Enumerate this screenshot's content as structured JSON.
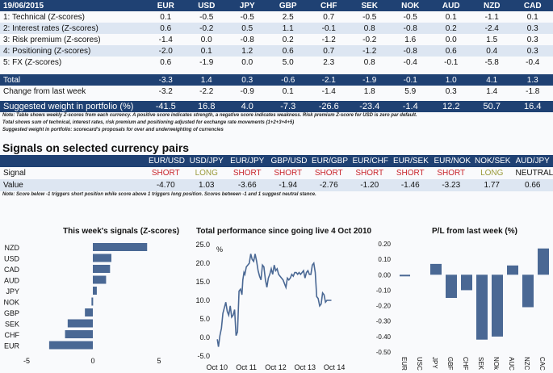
{
  "scorecard": {
    "date": "19/06/2015",
    "currencies": [
      "EUR",
      "USD",
      "JPY",
      "GBP",
      "CHF",
      "SEK",
      "NOK",
      "AUD",
      "NZD",
      "CAD"
    ],
    "rows": [
      {
        "label": "1: Technical (Z-scores)",
        "values": [
          "0.1",
          "-0.5",
          "-0.5",
          "2.5",
          "0.7",
          "-0.5",
          "-0.5",
          "0.1",
          "-1.1",
          "0.1"
        ]
      },
      {
        "label": "2: Interest rates (Z-scores)",
        "values": [
          "0.6",
          "-0.2",
          "0.5",
          "1.1",
          "-0.1",
          "0.8",
          "-0.8",
          "0.2",
          "-2.4",
          "0.3"
        ]
      },
      {
        "label": "3: Risk premium (Z-scores)",
        "values": [
          "-1.4",
          "0.0",
          "-0.8",
          "0.2",
          "-1.2",
          "-0.2",
          "1.6",
          "0.0",
          "1.5",
          "0.3"
        ]
      },
      {
        "label": "4: Positioning (Z-scores)",
        "values": [
          "-2.0",
          "0.1",
          "1.2",
          "0.6",
          "0.7",
          "-1.2",
          "-0.8",
          "0.6",
          "0.4",
          "0.3"
        ]
      },
      {
        "label": "5: FX (Z-scores)",
        "values": [
          "0.6",
          "-1.9",
          "0.0",
          "5.0",
          "2.3",
          "0.8",
          "-0.4",
          "-0.1",
          "-5.8",
          "-0.4"
        ]
      }
    ],
    "total": {
      "label": "Total",
      "values": [
        "-3.3",
        "1.4",
        "0.3",
        "-0.6",
        "-2.1",
        "-1.9",
        "-0.1",
        "1.0",
        "4.1",
        "1.3"
      ]
    },
    "change": {
      "label": "Change from last week",
      "values": [
        "-3.2",
        "-2.2",
        "-0.9",
        "0.1",
        "-1.4",
        "1.8",
        "5.9",
        "0.3",
        "1.4",
        "-1.8"
      ]
    },
    "weight": {
      "label": "Suggested weight in portfolio (%)",
      "values": [
        "-41.5",
        "16.8",
        "4.0",
        "-7.3",
        "-26.6",
        "-23.4",
        "-1.4",
        "12.2",
        "50.7",
        "16.4"
      ]
    },
    "notes": [
      "Note: Table shows weekly Z-scores from each currency. A positive score indicates strength, a negative score indicates weakness. Risk premium Z-score for USD is zero par default.",
      "Total shows sum of technical, interest rates, risk premium and positioning adjusted for exchange rate movements (1+2+3+4+5)",
      "Suggested weight in portfolio: scorecard's proposals for over and underweighting of currencies"
    ]
  },
  "signals": {
    "title": "Signals on selected currency pairs",
    "pairs": [
      "EUR/USD",
      "USD/JPY",
      "EUR/JPY",
      "GBP/USD",
      "EUR/GBP",
      "EUR/CHF",
      "EUR/SEK",
      "EUR/NOK",
      "NOK/SEK",
      "AUD/JPY"
    ],
    "signal_label": "Signal",
    "signals": [
      "SHORT",
      "LONG",
      "SHORT",
      "SHORT",
      "SHORT",
      "SHORT",
      "SHORT",
      "SHORT",
      "LONG",
      "NEUTRAL"
    ],
    "value_label": "Value",
    "values": [
      "-4.70",
      "1.03",
      "-3.66",
      "-1.94",
      "-2.76",
      "-1.20",
      "-1.46",
      "-3.23",
      "1.77",
      "0.66"
    ],
    "note": "Note: Score below -1 triggers short position while score above 1 triggers long position. Scores between -1 and 1 suggest neutral stance."
  },
  "colors": {
    "navy": "#1f4173",
    "bar": "#4a6894",
    "short": "#c8242b",
    "long": "#9a9a3a"
  },
  "chart_data": [
    {
      "type": "bar",
      "orientation": "horizontal",
      "title": "This week's signals (Z-scores)",
      "categories": [
        "NZD",
        "USD",
        "CAD",
        "AUD",
        "JPY",
        "NOK",
        "GBP",
        "SEK",
        "CHF",
        "EUR"
      ],
      "values": [
        4.1,
        1.4,
        1.3,
        1.0,
        0.3,
        -0.1,
        -0.6,
        -1.9,
        -2.1,
        -3.3
      ],
      "xlim": [
        -5,
        5
      ],
      "xticks": [
        "-5",
        "0",
        "5"
      ]
    },
    {
      "type": "line",
      "title": "Total performance since going live 4 Oct 2010",
      "ylabel": "%",
      "ylim": [
        -5,
        25
      ],
      "yticks": [
        "-5.0",
        "0.0",
        "5.0",
        "10.0",
        "15.0",
        "20.0",
        "25.0"
      ],
      "xticks": [
        "Oct 10",
        "Oct 11",
        "Oct 12",
        "Oct 13",
        "Oct 14"
      ],
      "x": [
        2010.76,
        2010.8,
        2010.85,
        2010.9,
        2010.95,
        2011.0,
        2011.05,
        2011.1,
        2011.15,
        2011.2,
        2011.25,
        2011.3,
        2011.35,
        2011.4,
        2011.45,
        2011.5,
        2011.55,
        2011.6,
        2011.63,
        2011.67,
        2011.7,
        2011.75,
        2011.8,
        2011.85,
        2011.9,
        2011.95,
        2012.0,
        2012.05,
        2012.1,
        2012.15,
        2012.2,
        2012.25,
        2012.3,
        2012.35,
        2012.4,
        2012.45,
        2012.5,
        2012.55,
        2012.6,
        2012.65,
        2012.7,
        2012.75,
        2012.8,
        2012.85,
        2012.9,
        2012.95,
        2013.0,
        2013.05,
        2013.1,
        2013.15,
        2013.2,
        2013.25,
        2013.3,
        2013.35,
        2013.4,
        2013.45,
        2013.5,
        2013.55,
        2013.6,
        2013.65,
        2013.7,
        2013.75,
        2013.8,
        2013.85,
        2013.9,
        2013.95,
        2014.0,
        2014.05,
        2014.1,
        2014.15,
        2014.2,
        2014.25,
        2014.3,
        2014.35,
        2014.4,
        2014.45,
        2014.5,
        2014.55,
        2014.6,
        2014.65,
        2014.7,
        2014.75,
        2014.8,
        2014.85,
        2014.9,
        2014.95,
        2015.0,
        2015.05,
        2015.1,
        2015.15,
        2015.2,
        2015.25,
        2015.3,
        2015.35,
        2015.4,
        2015.45
      ],
      "values": [
        -0.5,
        -2.5,
        0.5,
        2.5,
        6.5,
        8,
        9.5,
        7,
        6,
        8.5,
        5.5,
        6,
        7.5,
        0.5,
        1.5,
        12.5,
        13,
        11.5,
        15.5,
        17.5,
        17,
        19,
        19.5,
        20,
        22.5,
        21,
        20.5,
        22.5,
        20.5,
        18,
        16.5,
        15.5,
        19.5,
        19,
        15.5,
        13.5,
        16,
        17,
        18.5,
        17,
        19.5,
        18,
        18.5,
        17,
        16.5,
        16,
        15.5,
        14.5,
        13.5,
        16,
        15.5,
        16,
        17,
        16.5,
        17.5,
        17.5,
        17,
        17.5,
        17,
        17.5,
        18,
        16,
        17.5,
        18,
        17,
        17,
        19.5,
        20,
        17.5,
        11,
        10.5,
        8.5,
        9,
        12,
        11.5,
        9.5,
        10,
        10,
        10,
        10,
        10,
        10,
        10,
        10,
        10,
        10,
        10,
        10,
        10,
        10,
        10,
        10,
        10,
        10,
        10,
        10
      ],
      "note": "values approximated from line"
    },
    {
      "type": "bar",
      "title": "P/L from last week (%)",
      "categories": [
        "EUR",
        "USD",
        "JPY",
        "GBP",
        "CHF",
        "SEK",
        "NOK",
        "AUD",
        "NZD",
        "CAD"
      ],
      "values": [
        -0.01,
        0.0,
        0.07,
        -0.15,
        -0.1,
        -0.42,
        -0.4,
        0.06,
        -0.21,
        0.17
      ],
      "ylim": [
        -0.5,
        0.2
      ],
      "yticks": [
        "-0.50",
        "-0.40",
        "-0.30",
        "-0.20",
        "-0.10",
        "0.00",
        "0.10",
        "0.20"
      ],
      "xlabels_rotated": [
        "EUR",
        "USC",
        "JPY",
        "GBF",
        "CHF",
        "SEK",
        "NOk",
        "AUC",
        "NZC",
        "CAC"
      ]
    }
  ]
}
